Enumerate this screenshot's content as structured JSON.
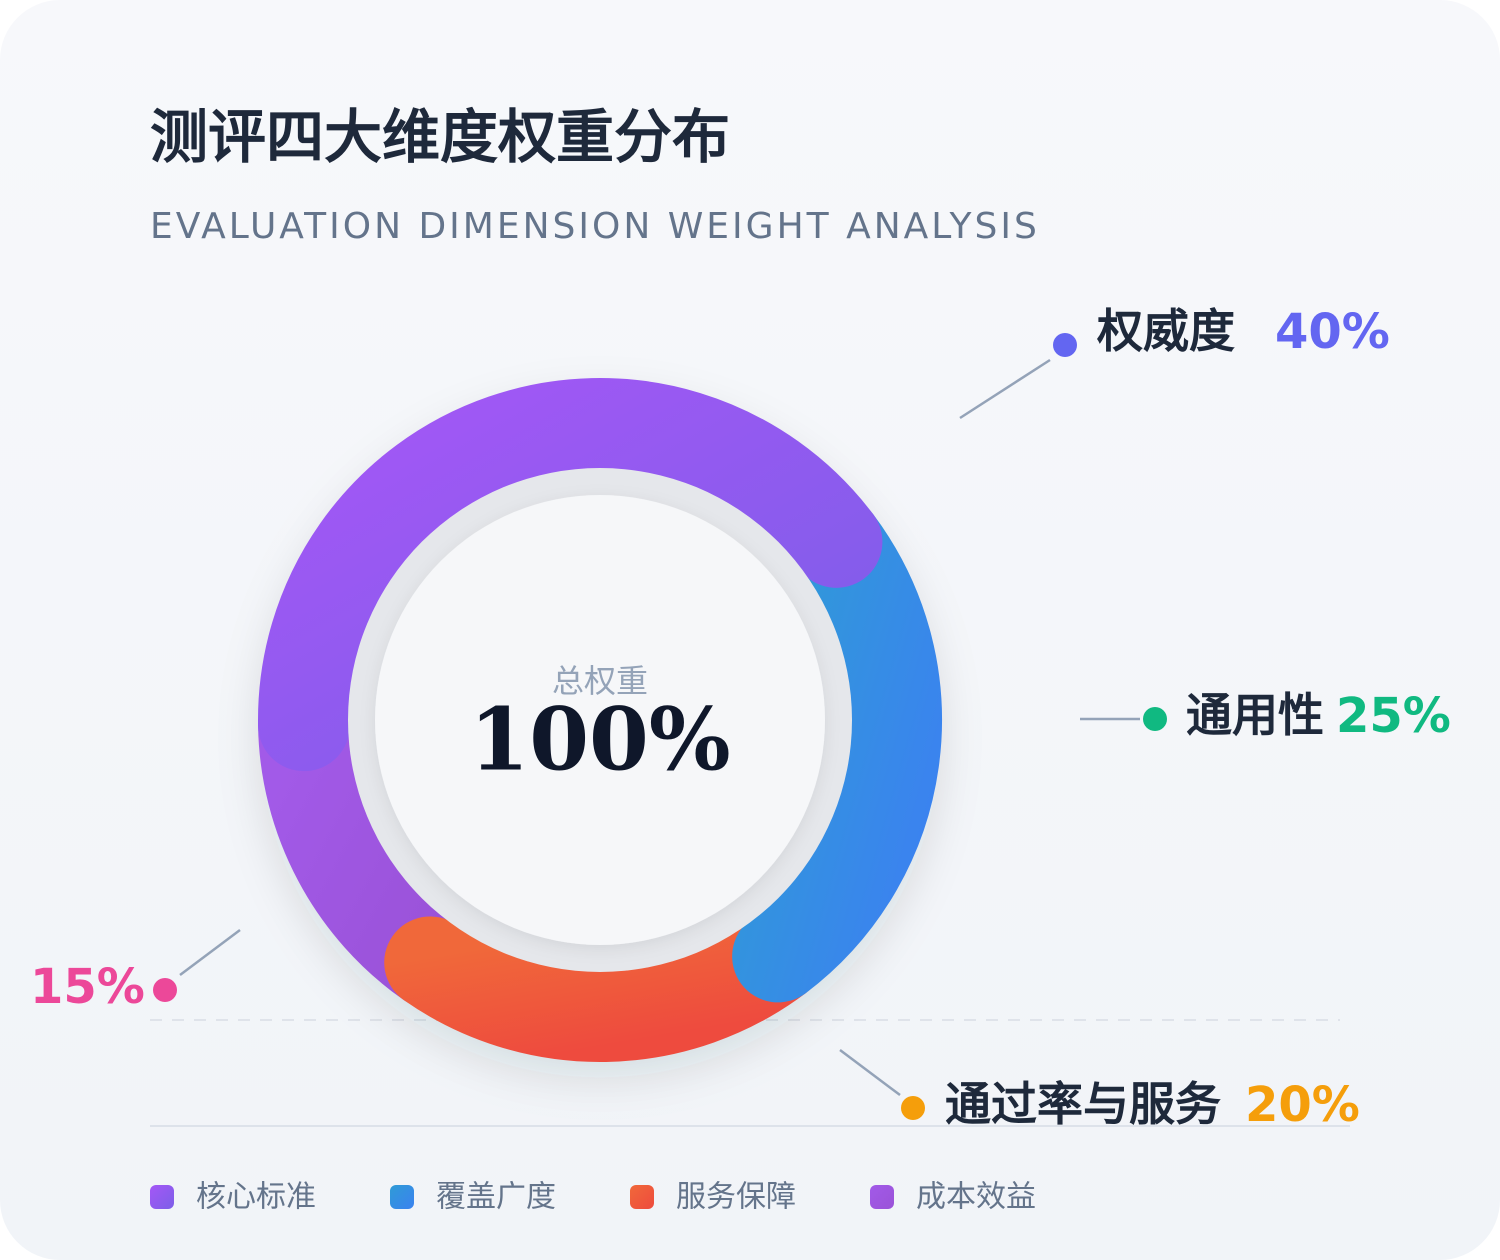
{
  "chart_data": {
    "type": "donut",
    "title": "测评四大维度权重分布",
    "subtitle": "EVALUATION DIMENSION WEIGHT ANALYSIS",
    "center_label": "总权重",
    "center_value": "100%",
    "categories": [
      "权威度",
      "通用性",
      "通过率与服务",
      null
    ],
    "values": [
      40,
      25,
      20,
      15
    ],
    "value_labels": [
      "40%",
      "25%",
      "20%",
      "15%"
    ],
    "colors": [
      [
        "#a457f6",
        "#7c5ee8"
      ],
      [
        "#2f9bd6",
        "#3b82f0"
      ],
      [
        "#f0683a",
        "#ee4b3e"
      ],
      [
        "#a25ae8",
        "#9a52d8"
      ]
    ],
    "label_colors": [
      "#6366f1",
      "#10b981",
      "#f59e0b",
      "#ec4899"
    ],
    "legend": [
      "核心标准",
      "覆盖广度",
      "服务保障",
      "成本效益"
    ]
  }
}
